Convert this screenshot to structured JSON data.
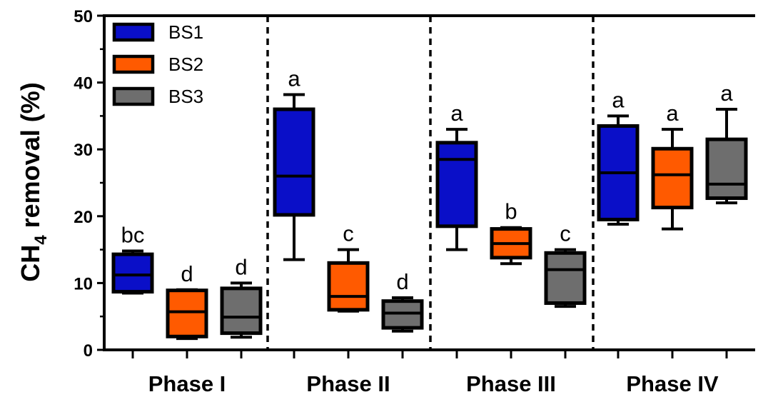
{
  "chart_data": {
    "type": "box",
    "ylabel_main": "CH",
    "ylabel_sub": "4",
    "ylabel_rest": " removal (%)",
    "ylim": [
      0,
      50
    ],
    "yticks": [
      "0",
      "10",
      "20",
      "30",
      "40",
      "50"
    ],
    "categories": [
      "Phase I",
      "Phase II",
      "Phase III",
      "Phase IV"
    ],
    "legend_position": "top-left",
    "phase_dividers": "dashed",
    "series": [
      {
        "name": "BS1",
        "color": "#0a0fc8",
        "boxes": [
          {
            "min": 8.5,
            "q1": 8.7,
            "median": 11.2,
            "q3": 14.3,
            "max": 14.8,
            "label": "bc"
          },
          {
            "min": 13.5,
            "q1": 20.2,
            "median": 26.0,
            "q3": 36.0,
            "max": 38.2,
            "label": "a"
          },
          {
            "min": 15.0,
            "q1": 18.5,
            "median": 28.5,
            "q3": 31.0,
            "max": 33.0,
            "label": "a"
          },
          {
            "min": 18.8,
            "q1": 19.5,
            "median": 26.5,
            "q3": 33.5,
            "max": 35.0,
            "label": "a"
          }
        ]
      },
      {
        "name": "BS2",
        "color": "#ff5a00",
        "boxes": [
          {
            "min": 1.7,
            "q1": 2.0,
            "median": 5.7,
            "q3": 8.9,
            "max": 9.0,
            "label": "d"
          },
          {
            "min": 5.8,
            "q1": 6.0,
            "median": 8.0,
            "q3": 13.0,
            "max": 15.0,
            "label": "c"
          },
          {
            "min": 12.9,
            "q1": 13.8,
            "median": 15.9,
            "q3": 18.1,
            "max": 18.3,
            "label": "b"
          },
          {
            "min": 18.1,
            "q1": 21.3,
            "median": 26.2,
            "q3": 30.1,
            "max": 33.0,
            "label": "a"
          }
        ]
      },
      {
        "name": "BS3",
        "color": "#6e6e6e",
        "boxes": [
          {
            "min": 1.9,
            "q1": 2.5,
            "median": 4.9,
            "q3": 9.2,
            "max": 10.0,
            "label": "d"
          },
          {
            "min": 2.8,
            "q1": 3.3,
            "median": 5.5,
            "q3": 7.3,
            "max": 7.8,
            "label": "d"
          },
          {
            "min": 6.5,
            "q1": 7.0,
            "median": 12.0,
            "q3": 14.5,
            "max": 15.0,
            "label": "c"
          },
          {
            "min": 22.0,
            "q1": 22.7,
            "median": 24.8,
            "q3": 31.5,
            "max": 36.0,
            "label": "a"
          }
        ]
      }
    ]
  }
}
